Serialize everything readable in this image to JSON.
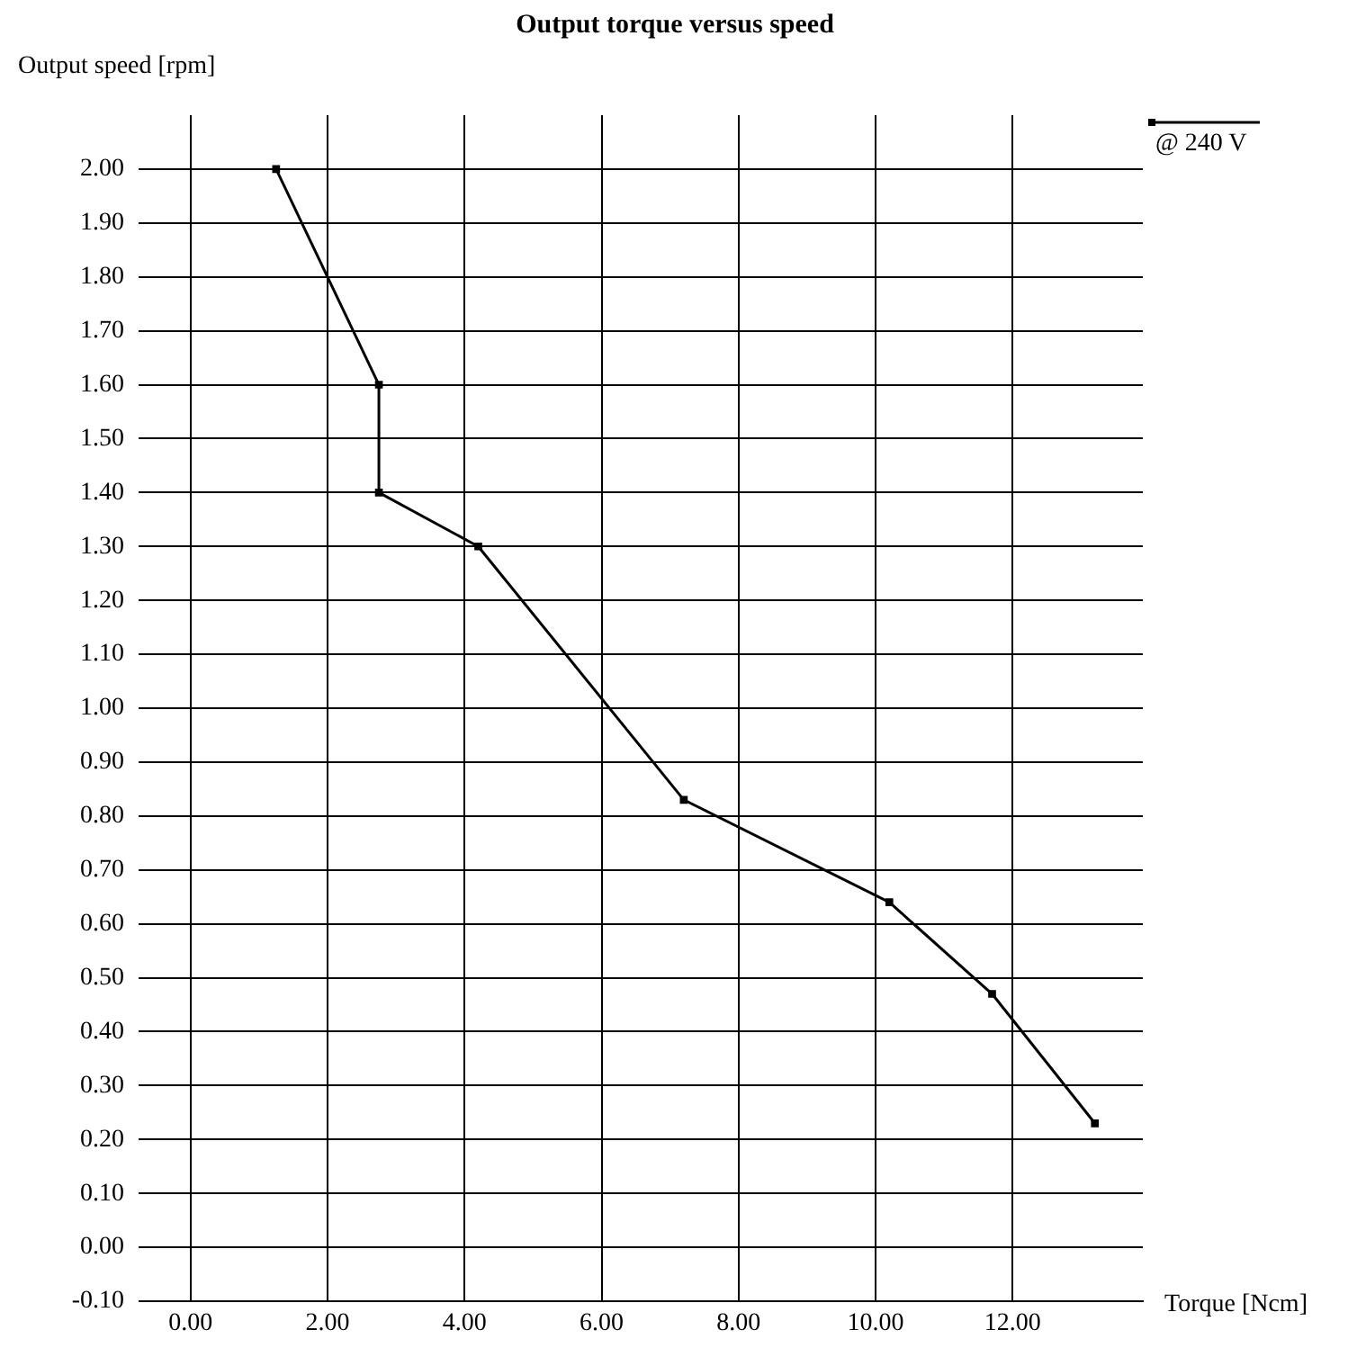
{
  "chart_data": {
    "type": "line",
    "title": "Output torque versus speed",
    "xlabel": "Torque [Ncm]",
    "ylabel": "Output speed [rpm]",
    "x": [
      1.25,
      2.75,
      2.75,
      4.2,
      7.2,
      10.2,
      11.7,
      13.2
    ],
    "series": [
      {
        "name": "@ 240 V",
        "color": "#000000",
        "values": [
          2.0,
          1.6,
          1.4,
          1.3,
          0.83,
          0.64,
          0.47,
          0.23
        ]
      }
    ],
    "xlim": [
      -0.6,
      13.9
    ],
    "ylim": [
      -0.1,
      2.1
    ],
    "xticks": [
      {
        "value": 0,
        "label": "0.00"
      },
      {
        "value": 2,
        "label": "2.00"
      },
      {
        "value": 4,
        "label": "4.00"
      },
      {
        "value": 6,
        "label": "6.00"
      },
      {
        "value": 8,
        "label": "8.00"
      },
      {
        "value": 10,
        "label": "10.00"
      },
      {
        "value": 12,
        "label": "12.00"
      }
    ],
    "yticks": [
      {
        "value": -0.1,
        "label": "-0.10"
      },
      {
        "value": 0,
        "label": "0.00"
      },
      {
        "value": 0.1,
        "label": "0.10"
      },
      {
        "value": 0.2,
        "label": "0.20"
      },
      {
        "value": 0.3,
        "label": "0.30"
      },
      {
        "value": 0.4,
        "label": "0.40"
      },
      {
        "value": 0.5,
        "label": "0.50"
      },
      {
        "value": 0.6,
        "label": "0.60"
      },
      {
        "value": 0.7,
        "label": "0.70"
      },
      {
        "value": 0.8,
        "label": "0.80"
      },
      {
        "value": 0.9,
        "label": "0.90"
      },
      {
        "value": 1.0,
        "label": "1.00"
      },
      {
        "value": 1.1,
        "label": "1.10"
      },
      {
        "value": 1.2,
        "label": "1.20"
      },
      {
        "value": 1.3,
        "label": "1.30"
      },
      {
        "value": 1.4,
        "label": "1.40"
      },
      {
        "value": 1.5,
        "label": "1.50"
      },
      {
        "value": 1.6,
        "label": "1.60"
      },
      {
        "value": 1.7,
        "label": "1.70"
      },
      {
        "value": 1.8,
        "label": "1.80"
      },
      {
        "value": 1.9,
        "label": "1.90"
      },
      {
        "value": 2.0,
        "label": "2.00"
      }
    ],
    "grid": true,
    "legend": "top right",
    "marker": "square",
    "line_style": "solid"
  }
}
